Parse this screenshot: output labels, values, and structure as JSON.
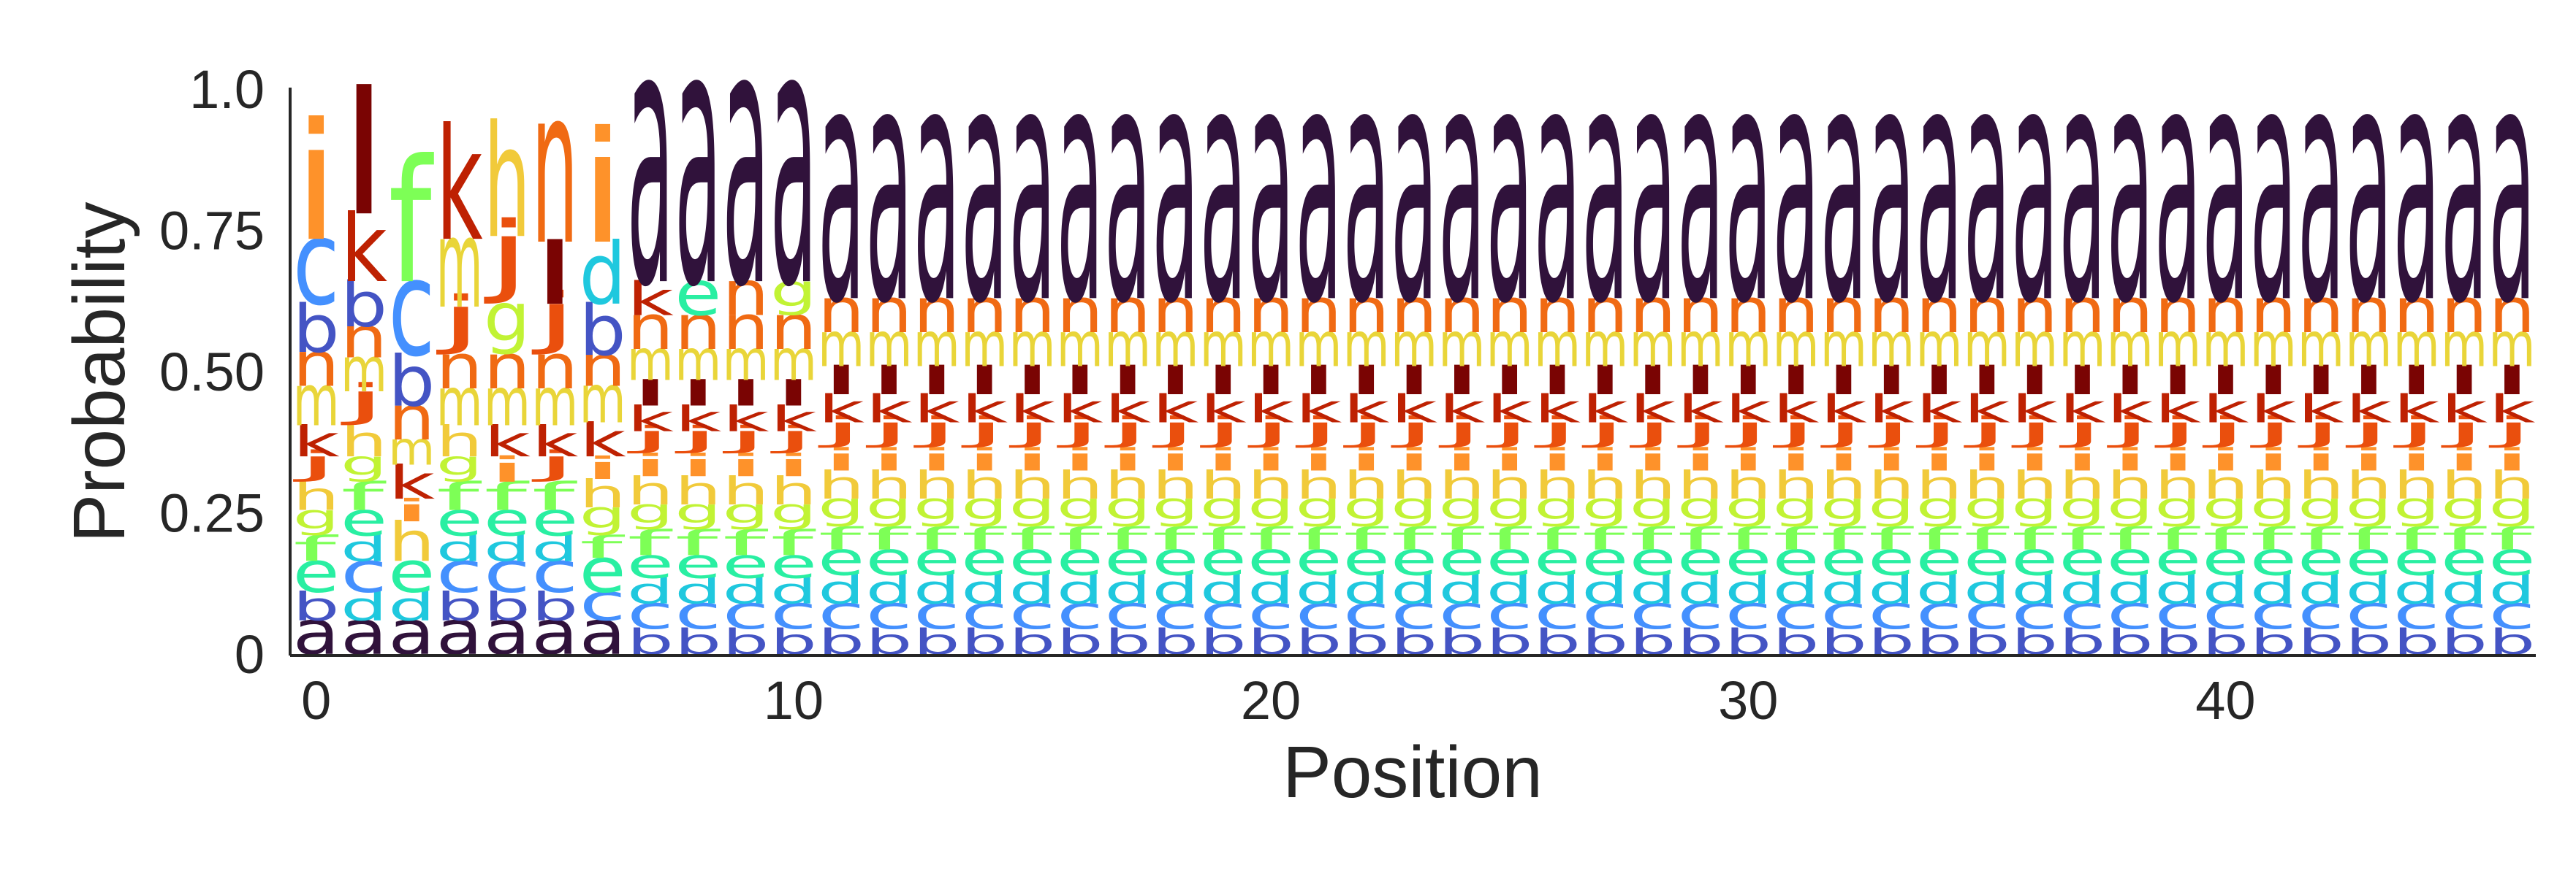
{
  "chart_data": {
    "type": "sequence_logo",
    "title": "",
    "xlabel": "Position",
    "ylabel": "Probability",
    "ylim": [
      0,
      1
    ],
    "xlim": [
      -0.5,
      46.5
    ],
    "x_ticks": [
      "0",
      "10",
      "20",
      "30",
      "40"
    ],
    "y_ticks": [
      "0",
      "0.25",
      "0.50",
      "0.75",
      "1.0"
    ],
    "x_tick_values": [
      0,
      10,
      20,
      30,
      40
    ],
    "y_tick_values": [
      0,
      0.25,
      0.5,
      0.75,
      1.0
    ],
    "alphabet": [
      "a",
      "b",
      "c",
      "d",
      "e",
      "f",
      "g",
      "h",
      "i",
      "j",
      "k",
      "l",
      "m",
      "n"
    ],
    "letter_colors": {
      "a": "#30123b",
      "b": "#4454c4",
      "c": "#4490fe",
      "d": "#1fc8de",
      "e": "#29efa2",
      "f": "#7dff56",
      "g": "#c1f334",
      "h": "#f1ca3a",
      "i": "#fe922a",
      "j": "#ea4f0d",
      "k": "#be2102",
      "l": "#7a0403",
      "m": "#e9d539",
      "n": "#f06a13"
    },
    "positions": [
      {
        "position": 0,
        "stack": [
          [
            "a",
            0.06
          ],
          [
            "b",
            0.05
          ],
          [
            "e",
            0.055
          ],
          [
            "f",
            0.045
          ],
          [
            "g",
            0.045
          ],
          [
            "h",
            0.05
          ],
          [
            "j",
            0.045
          ],
          [
            "k",
            0.055
          ],
          [
            "m",
            0.07
          ],
          [
            "n",
            0.06
          ],
          [
            "b",
            0.085
          ],
          [
            "c",
            0.115
          ],
          [
            "i",
            0.21
          ]
        ]
      },
      {
        "position": 1,
        "stack": [
          [
            "a",
            0.06
          ],
          [
            "d",
            0.05
          ],
          [
            "c",
            0.055
          ],
          [
            "d",
            0.045
          ],
          [
            "e",
            0.045
          ],
          [
            "f",
            0.05
          ],
          [
            "g",
            0.045
          ],
          [
            "h",
            0.055
          ],
          [
            "j",
            0.06
          ],
          [
            "m",
            0.06
          ],
          [
            "n",
            0.055
          ],
          [
            "b",
            0.08
          ],
          [
            "k",
            0.12
          ],
          [
            "l",
            0.22
          ]
        ]
      },
      {
        "position": 2,
        "stack": [
          [
            "a",
            0.06
          ],
          [
            "d",
            0.05
          ],
          [
            "e",
            0.055
          ],
          [
            "h",
            0.07
          ],
          [
            "i",
            0.04
          ],
          [
            "k",
            0.06
          ],
          [
            "m",
            0.045
          ],
          [
            "n",
            0.06
          ],
          [
            "b",
            0.09
          ],
          [
            "c",
            0.13
          ],
          [
            "f",
            0.22
          ]
        ]
      },
      {
        "position": 3,
        "stack": [
          [
            "a",
            0.06
          ],
          [
            "b",
            0.05
          ],
          [
            "c",
            0.055
          ],
          [
            "d",
            0.045
          ],
          [
            "e",
            0.045
          ],
          [
            "f",
            0.05
          ],
          [
            "g",
            0.045
          ],
          [
            "h",
            0.055
          ],
          [
            "m",
            0.065
          ],
          [
            "n",
            0.06
          ],
          [
            "j",
            0.085
          ],
          [
            "m",
            0.12
          ],
          [
            "k",
            0.2
          ]
        ]
      },
      {
        "position": 4,
        "stack": [
          [
            "a",
            0.06
          ],
          [
            "b",
            0.05
          ],
          [
            "c",
            0.055
          ],
          [
            "d",
            0.045
          ],
          [
            "e",
            0.045
          ],
          [
            "f",
            0.05
          ],
          [
            "i",
            0.045
          ],
          [
            "k",
            0.055
          ],
          [
            "m",
            0.065
          ],
          [
            "n",
            0.06
          ],
          [
            "g",
            0.09
          ],
          [
            "j",
            0.12
          ],
          [
            "h",
            0.2
          ]
        ]
      },
      {
        "position": 5,
        "stack": [
          [
            "a",
            0.06
          ],
          [
            "b",
            0.05
          ],
          [
            "c",
            0.055
          ],
          [
            "d",
            0.045
          ],
          [
            "e",
            0.045
          ],
          [
            "f",
            0.05
          ],
          [
            "j",
            0.045
          ],
          [
            "k",
            0.055
          ],
          [
            "m",
            0.065
          ],
          [
            "n",
            0.06
          ],
          [
            "j",
            0.09
          ],
          [
            "l",
            0.11
          ],
          [
            "n",
            0.21
          ]
        ]
      },
      {
        "position": 6,
        "stack": [
          [
            "a",
            0.06
          ],
          [
            "c",
            0.05
          ],
          [
            "e",
            0.06
          ],
          [
            "f",
            0.04
          ],
          [
            "g",
            0.05
          ],
          [
            "h",
            0.05
          ],
          [
            "i",
            0.04
          ],
          [
            "k",
            0.06
          ],
          [
            "m",
            0.065
          ],
          [
            "n",
            0.055
          ],
          [
            "b",
            0.09
          ],
          [
            "d",
            0.11
          ],
          [
            "i",
            0.2
          ]
        ]
      },
      {
        "position": 7,
        "stack": [
          [
            "b",
            0.045
          ],
          [
            "c",
            0.045
          ],
          [
            "d",
            0.045
          ],
          [
            "e",
            0.04
          ],
          [
            "f",
            0.045
          ],
          [
            "g",
            0.045
          ],
          [
            "h",
            0.05
          ],
          [
            "i",
            0.04
          ],
          [
            "j",
            0.04
          ],
          [
            "k",
            0.045
          ],
          [
            "l",
            0.045
          ],
          [
            "m",
            0.055
          ],
          [
            "n",
            0.06
          ],
          [
            "k",
            0.06
          ],
          [
            "a",
            0.35
          ]
        ]
      },
      {
        "position": 8,
        "stack": [
          [
            "b",
            0.045
          ],
          [
            "c",
            0.045
          ],
          [
            "d",
            0.045
          ],
          [
            "e",
            0.04
          ],
          [
            "f",
            0.045
          ],
          [
            "g",
            0.045
          ],
          [
            "h",
            0.05
          ],
          [
            "i",
            0.04
          ],
          [
            "j",
            0.04
          ],
          [
            "k",
            0.045
          ],
          [
            "l",
            0.045
          ],
          [
            "m",
            0.055
          ],
          [
            "n",
            0.06
          ],
          [
            "e",
            0.06
          ],
          [
            "a",
            0.35
          ]
        ]
      },
      {
        "position": 9,
        "stack": [
          [
            "b",
            0.045
          ],
          [
            "c",
            0.045
          ],
          [
            "d",
            0.045
          ],
          [
            "e",
            0.04
          ],
          [
            "f",
            0.045
          ],
          [
            "g",
            0.045
          ],
          [
            "h",
            0.05
          ],
          [
            "i",
            0.04
          ],
          [
            "j",
            0.04
          ],
          [
            "k",
            0.045
          ],
          [
            "l",
            0.045
          ],
          [
            "m",
            0.055
          ],
          [
            "n",
            0.06
          ],
          [
            "n",
            0.06
          ],
          [
            "a",
            0.35
          ]
        ]
      },
      {
        "position": 10,
        "stack": [
          [
            "b",
            0.045
          ],
          [
            "c",
            0.045
          ],
          [
            "d",
            0.045
          ],
          [
            "e",
            0.04
          ],
          [
            "f",
            0.045
          ],
          [
            "g",
            0.045
          ],
          [
            "h",
            0.05
          ],
          [
            "i",
            0.04
          ],
          [
            "j",
            0.04
          ],
          [
            "k",
            0.045
          ],
          [
            "l",
            0.045
          ],
          [
            "m",
            0.055
          ],
          [
            "n",
            0.06
          ],
          [
            "g",
            0.06
          ],
          [
            "a",
            0.35
          ]
        ]
      }
    ],
    "repeat_from_position": 11,
    "repeat_to_position": 46,
    "repeat_stack": [
      [
        "b",
        0.045
      ],
      [
        "c",
        0.045
      ],
      [
        "d",
        0.05
      ],
      [
        "e",
        0.045
      ],
      [
        "f",
        0.04
      ],
      [
        "g",
        0.05
      ],
      [
        "h",
        0.05
      ],
      [
        "i",
        0.04
      ],
      [
        "j",
        0.045
      ],
      [
        "k",
        0.05
      ],
      [
        "l",
        0.05
      ],
      [
        "m",
        0.06
      ],
      [
        "n",
        0.06
      ],
      [
        "a",
        0.32
      ]
    ]
  }
}
